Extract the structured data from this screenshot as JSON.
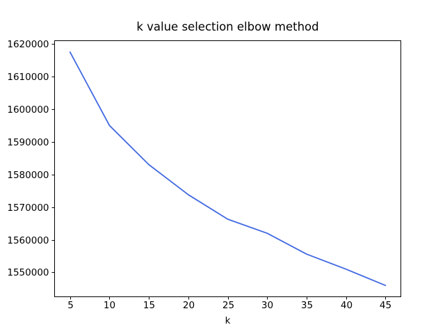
{
  "figure": {
    "title": "k value selection elbow method",
    "xlabel": "k"
  },
  "chart_data": {
    "type": "line",
    "title": "k value selection elbow method",
    "xlabel": "k",
    "ylabel": "",
    "x": [
      5,
      10,
      15,
      20,
      25,
      30,
      35,
      40,
      45
    ],
    "y": [
      1617500,
      1595000,
      1583000,
      1573800,
      1566300,
      1562000,
      1555600,
      1551000,
      1546000
    ],
    "x_ticks": [
      "5",
      "10",
      "15",
      "20",
      "25",
      "30",
      "35",
      "40",
      "45"
    ],
    "x_tick_values": [
      5,
      10,
      15,
      20,
      25,
      30,
      35,
      40,
      45
    ],
    "y_ticks": [
      "1550000",
      "1560000",
      "1570000",
      "1580000",
      "1590000",
      "1600000",
      "1610000",
      "1620000"
    ],
    "y_tick_values": [
      1550000,
      1560000,
      1570000,
      1580000,
      1590000,
      1600000,
      1610000,
      1620000
    ],
    "xlim": [
      3,
      47
    ],
    "ylim": [
      1542425,
      1621075
    ],
    "grid": false,
    "legend": null,
    "line_color": "#4169e1",
    "line_width": 1.8,
    "spine_color": "#000000",
    "text_color": "#000000",
    "background_color": "#ffffff"
  }
}
